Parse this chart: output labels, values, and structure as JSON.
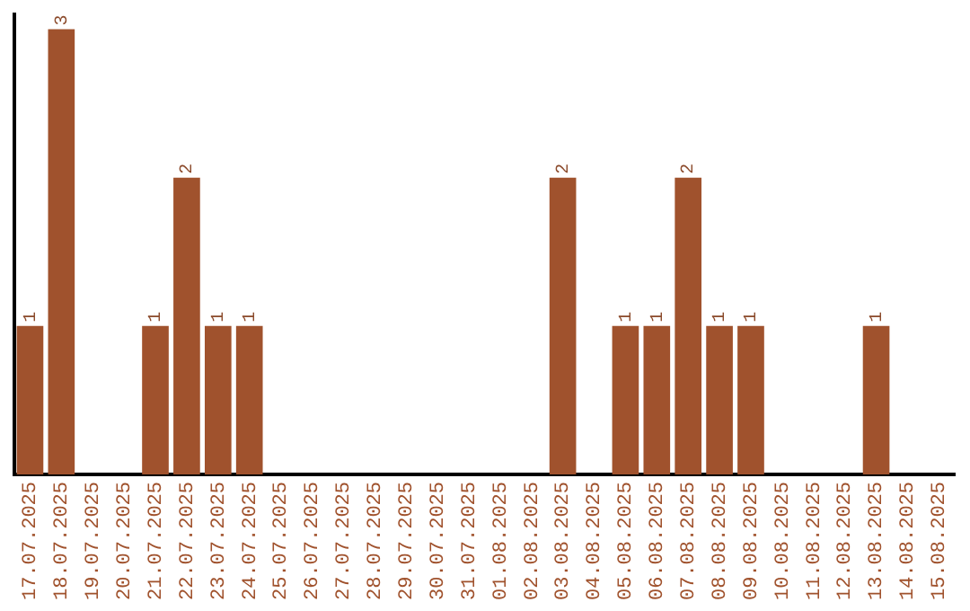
{
  "chart_data": {
    "type": "bar",
    "categories": [
      "17.07.2025",
      "18.07.2025",
      "19.07.2025",
      "20.07.2025",
      "21.07.2025",
      "22.07.2025",
      "23.07.2025",
      "24.07.2025",
      "25.07.2025",
      "26.07.2025",
      "27.07.2025",
      "28.07.2025",
      "29.07.2025",
      "30.07.2025",
      "31.07.2025",
      "01.08.2025",
      "02.08.2025",
      "03.08.2025",
      "04.08.2025",
      "05.08.2025",
      "06.08.2025",
      "07.08.2025",
      "08.08.2025",
      "09.08.2025",
      "10.08.2025",
      "11.08.2025",
      "12.08.2025",
      "13.08.2025",
      "14.08.2025",
      "15.08.2025"
    ],
    "values": [
      1,
      3,
      0,
      0,
      1,
      2,
      1,
      1,
      0,
      0,
      0,
      0,
      0,
      0,
      0,
      0,
      0,
      2,
      0,
      1,
      1,
      2,
      1,
      1,
      0,
      0,
      0,
      1,
      0,
      0
    ],
    "value_labels": [
      "1",
      "3",
      null,
      null,
      "1",
      "2",
      "1",
      "1",
      null,
      null,
      null,
      null,
      null,
      null,
      null,
      null,
      null,
      "2",
      null,
      "1",
      "1",
      "2",
      "1",
      "1",
      null,
      null,
      null,
      "1",
      null,
      null
    ],
    "color": "#a0522d",
    "ylim": [
      0,
      3.1
    ],
    "tick_labels": "x",
    "grid": false,
    "legend": false
  }
}
